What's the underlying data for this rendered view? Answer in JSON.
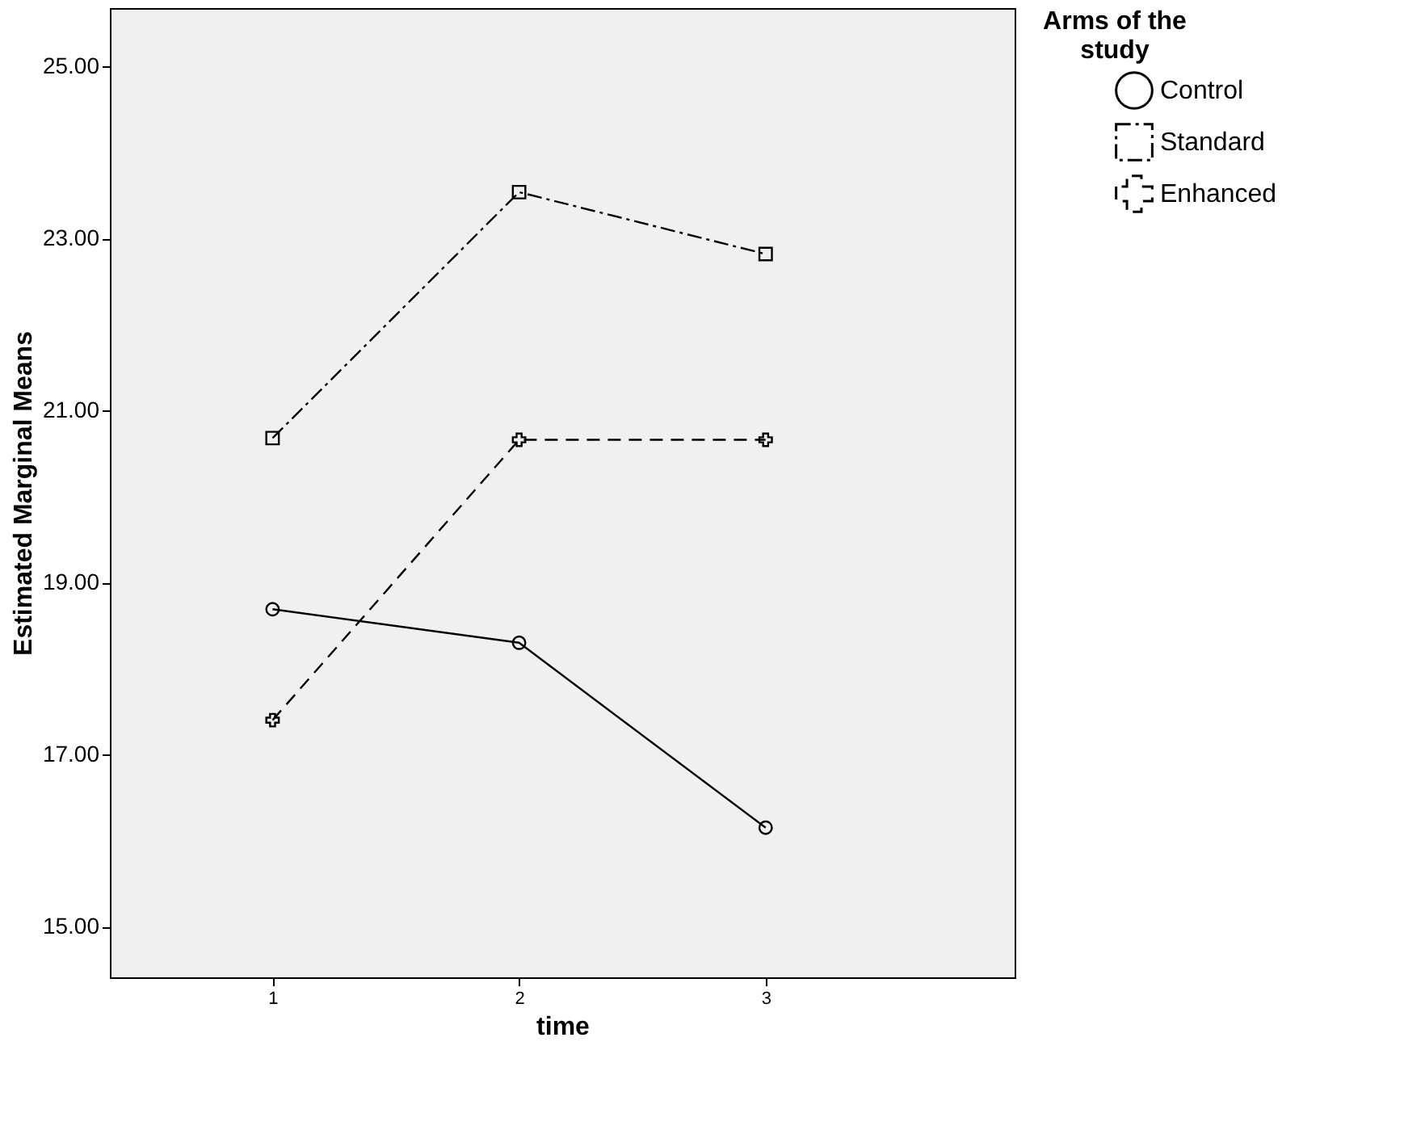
{
  "chart_data": {
    "type": "line",
    "xlabel": "time",
    "ylabel": "Estimated Marginal Means",
    "legend_title": "Arms of the study",
    "x": [
      1,
      2,
      3
    ],
    "xlim": [
      0.34,
      4.01
    ],
    "xticks": [
      1,
      2,
      3
    ],
    "ylim": [
      14.41,
      25.68
    ],
    "yticks": [
      {
        "value": 15,
        "label": "15.00"
      },
      {
        "value": 17,
        "label": "17.00"
      },
      {
        "value": 19,
        "label": "19.00"
      },
      {
        "value": 21,
        "label": "21.00"
      },
      {
        "value": 23,
        "label": "23.00"
      },
      {
        "value": 25,
        "label": "25.00"
      }
    ],
    "grid": false,
    "legend": "top right",
    "series": [
      {
        "name": "Control",
        "color": "#000000",
        "marker": "circle",
        "line_style": "solid",
        "values": [
          18.69,
          18.3,
          16.15
        ]
      },
      {
        "name": "Standard",
        "color": "#000000",
        "marker": "square",
        "line_style": "dashdot",
        "values": [
          20.68,
          23.54,
          22.82
        ]
      },
      {
        "name": "Enhanced",
        "color": "#000000",
        "marker": "cross",
        "line_style": "dashed",
        "values": [
          17.4,
          20.66,
          20.66
        ]
      }
    ]
  }
}
